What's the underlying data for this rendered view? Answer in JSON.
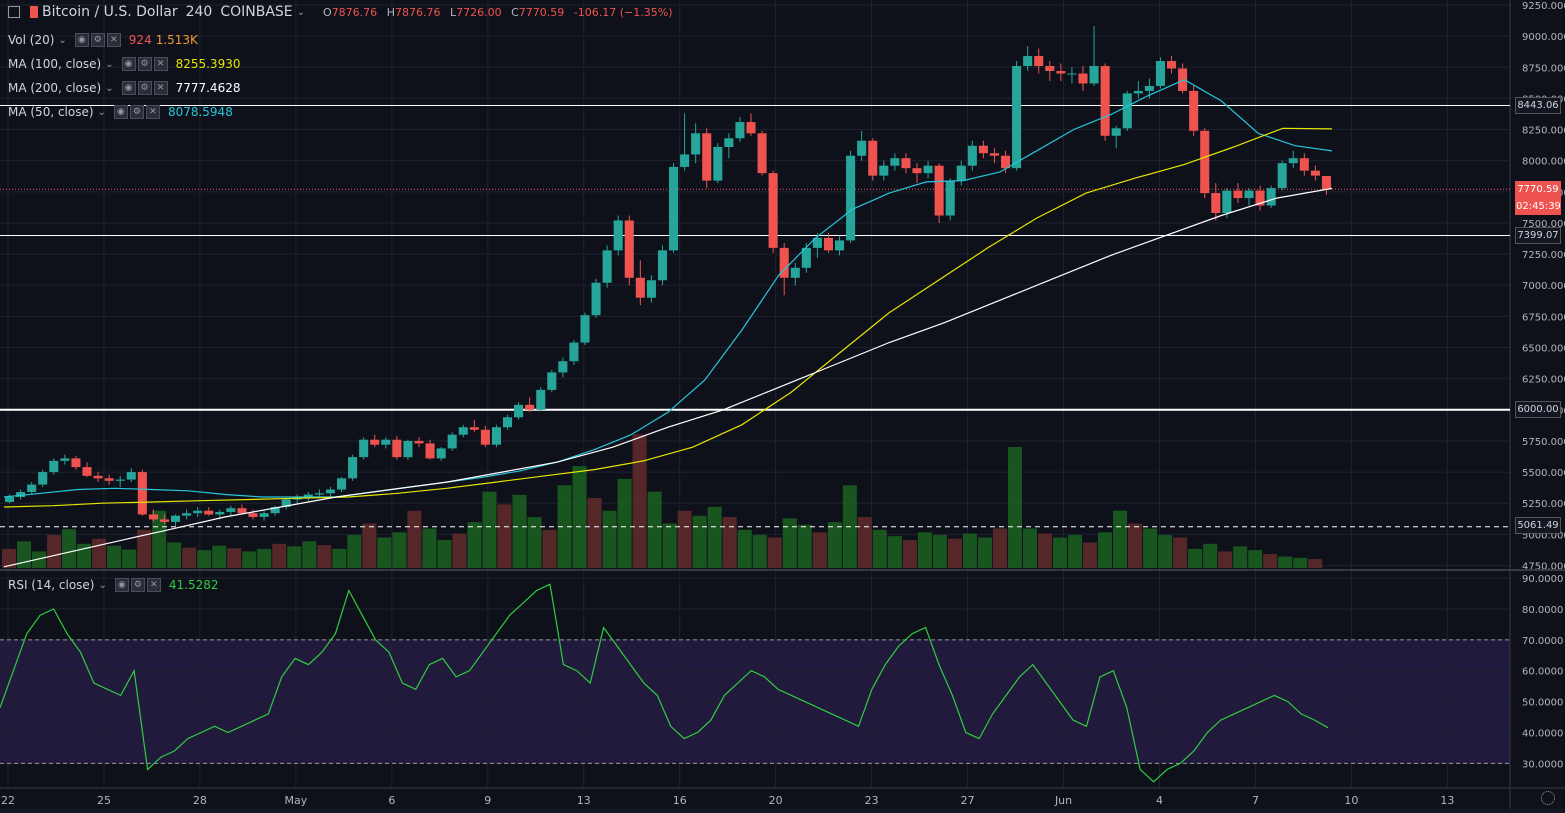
{
  "header": {
    "symbol": "Bitcoin / U.S. Dollar",
    "interval": "240",
    "exchange": "COINBASE",
    "open_label": "O",
    "open": "7876.76",
    "high_label": "H",
    "high": "7876.76",
    "low_label": "L",
    "low": "7726.00",
    "close_label": "C",
    "close": "7770.59",
    "change": "-106.17 (−1.35%)"
  },
  "indicators": {
    "vol": {
      "label": "Vol (20)",
      "value1": "924",
      "value2": "1.513K"
    },
    "ma100": {
      "label": "MA (100, close)",
      "value": "8255.3930",
      "color": "#e6e600"
    },
    "ma200": {
      "label": "MA (200, close)",
      "value": "7777.4628",
      "color": "#ffffff"
    },
    "ma50": {
      "label": "MA (50, close)",
      "value": "8078.5948",
      "color": "#26c6da"
    },
    "rsi": {
      "label": "RSI (14, close)",
      "value": "41.5282",
      "color": "#2ecc40"
    }
  },
  "colors": {
    "up": "#26a69a",
    "down": "#ef5350",
    "rsi_band": "#221a3d",
    "background": "#0f111a"
  },
  "price_axis": {
    "ticks": [
      "9250.000",
      "9000.000",
      "8750.000",
      "8500.000",
      "8250.000",
      "8000.000",
      "7750.000",
      "7500.000",
      "7250.000",
      "7000.000",
      "6750.000",
      "6500.000",
      "6250.000",
      "6000.000",
      "5750.000",
      "5500.000",
      "5250.000",
      "5000.000",
      "4750.000"
    ],
    "tick_values": [
      9250,
      9000,
      8750,
      8500,
      8250,
      8000,
      7750,
      7500,
      7250,
      7000,
      6750,
      6500,
      6250,
      6000,
      5750,
      5500,
      5250,
      5000,
      4750
    ],
    "range": [
      4730,
      9290
    ]
  },
  "price_labels": {
    "level_8443": "8443.06",
    "last_price": "7770.59",
    "countdown": "02:45:39",
    "level_7399": "7399.07",
    "level_6000": "6000.00",
    "level_5061": "5061.49"
  },
  "rsi_axis": {
    "ticks": [
      "90.0000",
      "80.0000",
      "70.0000",
      "60.0000",
      "50.0000",
      "40.0000",
      "30.0000"
    ],
    "tick_values": [
      90,
      80,
      70,
      60,
      50,
      40,
      30
    ],
    "range": [
      22,
      92
    ],
    "band": [
      30,
      70
    ]
  },
  "time_axis": {
    "labels": [
      "22",
      "25",
      "28",
      "May",
      "6",
      "9",
      "13",
      "16",
      "20",
      "23",
      "27",
      "Jun",
      "4",
      "7",
      "10",
      "13"
    ]
  },
  "chart_data": {
    "type": "candlestick",
    "title": "Bitcoin / U.S. Dollar 240 COINBASE",
    "interval": "240",
    "x_categories": [
      "22",
      "25",
      "28",
      "May",
      "6",
      "9",
      "13",
      "16",
      "20",
      "23",
      "27",
      "Jun",
      "4",
      "7",
      "10",
      "13"
    ],
    "ylim": [
      4730,
      9290
    ],
    "candles_ohlc": [
      [
        5260,
        5320,
        5250,
        5300
      ],
      [
        5300,
        5360,
        5280,
        5340
      ],
      [
        5340,
        5420,
        5320,
        5400
      ],
      [
        5400,
        5520,
        5380,
        5500
      ],
      [
        5500,
        5610,
        5480,
        5590
      ],
      [
        5590,
        5640,
        5560,
        5610
      ],
      [
        5610,
        5630,
        5520,
        5540
      ],
      [
        5540,
        5580,
        5460,
        5470
      ],
      [
        5470,
        5500,
        5420,
        5450
      ],
      [
        5450,
        5480,
        5400,
        5430
      ],
      [
        5430,
        5470,
        5380,
        5440
      ],
      [
        5440,
        5530,
        5420,
        5500
      ],
      [
        5500,
        5520,
        5150,
        5160
      ],
      [
        5160,
        5200,
        5100,
        5120
      ],
      [
        5120,
        5160,
        5080,
        5100
      ],
      [
        5100,
        5160,
        5070,
        5150
      ],
      [
        5150,
        5200,
        5120,
        5170
      ],
      [
        5170,
        5220,
        5140,
        5190
      ],
      [
        5190,
        5220,
        5150,
        5160
      ],
      [
        5160,
        5200,
        5120,
        5180
      ],
      [
        5180,
        5230,
        5150,
        5210
      ],
      [
        5210,
        5240,
        5160,
        5170
      ],
      [
        5170,
        5200,
        5120,
        5140
      ],
      [
        5140,
        5190,
        5110,
        5170
      ],
      [
        5170,
        5230,
        5150,
        5220
      ],
      [
        5220,
        5290,
        5200,
        5280
      ],
      [
        5280,
        5320,
        5250,
        5300
      ],
      [
        5300,
        5340,
        5270,
        5320
      ],
      [
        5320,
        5360,
        5290,
        5330
      ],
      [
        5330,
        5380,
        5300,
        5360
      ],
      [
        5360,
        5460,
        5340,
        5450
      ],
      [
        5450,
        5640,
        5430,
        5620
      ],
      [
        5620,
        5780,
        5600,
        5760
      ],
      [
        5760,
        5800,
        5700,
        5720
      ],
      [
        5720,
        5780,
        5690,
        5760
      ],
      [
        5760,
        5790,
        5600,
        5620
      ],
      [
        5620,
        5760,
        5600,
        5750
      ],
      [
        5750,
        5780,
        5700,
        5730
      ],
      [
        5730,
        5760,
        5600,
        5610
      ],
      [
        5610,
        5700,
        5590,
        5690
      ],
      [
        5690,
        5820,
        5670,
        5800
      ],
      [
        5800,
        5880,
        5780,
        5860
      ],
      [
        5860,
        5920,
        5820,
        5840
      ],
      [
        5840,
        5870,
        5700,
        5720
      ],
      [
        5720,
        5880,
        5700,
        5860
      ],
      [
        5860,
        5960,
        5840,
        5940
      ],
      [
        5940,
        6060,
        5920,
        6040
      ],
      [
        6040,
        6100,
        5980,
        6000
      ],
      [
        6000,
        6180,
        5990,
        6160
      ],
      [
        6160,
        6320,
        6140,
        6300
      ],
      [
        6300,
        6420,
        6260,
        6390
      ],
      [
        6390,
        6560,
        6360,
        6540
      ],
      [
        6540,
        6780,
        6520,
        6760
      ],
      [
        6760,
        7050,
        6740,
        7020
      ],
      [
        7020,
        7320,
        6980,
        7280
      ],
      [
        7280,
        7560,
        7240,
        7520
      ],
      [
        7520,
        7560,
        7000,
        7060
      ],
      [
        7060,
        7200,
        6840,
        6900
      ],
      [
        6900,
        7080,
        6860,
        7040
      ],
      [
        7040,
        7320,
        7000,
        7280
      ],
      [
        7280,
        7980,
        7260,
        7950
      ],
      [
        7950,
        8380,
        7920,
        8050
      ],
      [
        8050,
        8300,
        7980,
        8220
      ],
      [
        8220,
        8260,
        7780,
        7840
      ],
      [
        7840,
        8140,
        7820,
        8110
      ],
      [
        8110,
        8220,
        8020,
        8180
      ],
      [
        8180,
        8350,
        8150,
        8310
      ],
      [
        8310,
        8380,
        8200,
        8220
      ],
      [
        8220,
        8240,
        7880,
        7900
      ],
      [
        7900,
        7920,
        7260,
        7300
      ],
      [
        7300,
        7340,
        6920,
        7060
      ],
      [
        7060,
        7180,
        7000,
        7140
      ],
      [
        7140,
        7340,
        7100,
        7300
      ],
      [
        7300,
        7420,
        7220,
        7380
      ],
      [
        7380,
        7420,
        7260,
        7280
      ],
      [
        7280,
        7400,
        7240,
        7360
      ],
      [
        7360,
        8080,
        7340,
        8040
      ],
      [
        8040,
        8240,
        8000,
        8160
      ],
      [
        8160,
        8180,
        7840,
        7880
      ],
      [
        7880,
        8000,
        7840,
        7960
      ],
      [
        7960,
        8060,
        7920,
        8020
      ],
      [
        8020,
        8060,
        7900,
        7940
      ],
      [
        7940,
        7980,
        7820,
        7900
      ],
      [
        7900,
        8000,
        7860,
        7960
      ],
      [
        7960,
        7980,
        7500,
        7560
      ],
      [
        7560,
        7860,
        7520,
        7840
      ],
      [
        7840,
        8000,
        7800,
        7960
      ],
      [
        7960,
        8160,
        7920,
        8120
      ],
      [
        8120,
        8160,
        8020,
        8060
      ],
      [
        8060,
        8100,
        7980,
        8040
      ],
      [
        8040,
        8080,
        7900,
        7940
      ],
      [
        7940,
        8800,
        7920,
        8760
      ],
      [
        8760,
        8920,
        8720,
        8840
      ],
      [
        8840,
        8900,
        8700,
        8760
      ],
      [
        8760,
        8800,
        8640,
        8720
      ],
      [
        8720,
        8780,
        8640,
        8700
      ],
      [
        8700,
        8750,
        8620,
        8700
      ],
      [
        8700,
        8760,
        8560,
        8620
      ],
      [
        8620,
        9080,
        8600,
        8760
      ],
      [
        8760,
        8780,
        8160,
        8200
      ],
      [
        8200,
        8280,
        8100,
        8260
      ],
      [
        8260,
        8560,
        8240,
        8540
      ],
      [
        8540,
        8640,
        8500,
        8560
      ],
      [
        8560,
        8660,
        8500,
        8600
      ],
      [
        8600,
        8830,
        8580,
        8800
      ],
      [
        8800,
        8840,
        8700,
        8740
      ],
      [
        8740,
        8780,
        8540,
        8560
      ],
      [
        8560,
        8600,
        8200,
        8240
      ],
      [
        8240,
        8260,
        7700,
        7740
      ],
      [
        7740,
        7820,
        7520,
        7580
      ],
      [
        7580,
        7780,
        7540,
        7760
      ],
      [
        7760,
        7820,
        7660,
        7700
      ],
      [
        7700,
        7780,
        7640,
        7760
      ],
      [
        7760,
        7800,
        7600,
        7640
      ],
      [
        7640,
        7800,
        7620,
        7780
      ],
      [
        7780,
        8000,
        7760,
        7980
      ],
      [
        7980,
        8080,
        7940,
        8020
      ],
      [
        8020,
        8060,
        7880,
        7920
      ],
      [
        7920,
        7960,
        7840,
        7880
      ],
      [
        7876.76,
        7876.76,
        7726,
        7770.59
      ]
    ],
    "moving_averages": {
      "MA (50, close)": [
        5300,
        5330,
        5360,
        5370,
        5360,
        5350,
        5320,
        5300,
        5300,
        5300,
        5340,
        5380,
        5420,
        5460,
        5510,
        5580,
        5680,
        5800,
        5980,
        6240,
        6640,
        7080,
        7380,
        7610,
        7740,
        7830,
        7840,
        7910,
        8080,
        8250,
        8370,
        8520,
        8650,
        8480,
        8220,
        8120,
        8078.5948
      ],
      "MA (100, close)": [
        5220,
        5230,
        5250,
        5260,
        5270,
        5280,
        5290,
        5300,
        5330,
        5370,
        5420,
        5470,
        5520,
        5590,
        5700,
        5880,
        6140,
        6460,
        6780,
        7040,
        7300,
        7540,
        7740,
        7860,
        7970,
        8110,
        8260,
        8255.393
      ],
      "MA (200, close)": [
        4740,
        4840,
        4940,
        5040,
        5140,
        5220,
        5300,
        5360,
        5420,
        5500,
        5580,
        5700,
        5860,
        6000,
        6180,
        6360,
        6540,
        6700,
        6880,
        7060,
        7240,
        7400,
        7560,
        7700,
        7777.4628
      ]
    },
    "rsi_values": [
      48,
      60,
      72,
      78,
      80,
      72,
      66,
      56,
      54,
      52,
      60,
      28,
      32,
      34,
      38,
      40,
      42,
      40,
      42,
      44,
      46,
      58,
      64,
      62,
      66,
      72,
      86,
      78,
      70,
      66,
      56,
      54,
      62,
      64,
      58,
      60,
      66,
      72,
      78,
      82,
      86,
      88,
      62,
      60,
      56,
      74,
      68,
      62,
      56,
      52,
      42,
      38,
      40,
      44,
      52,
      56,
      60,
      58,
      54,
      52,
      50,
      48,
      46,
      44,
      42,
      54,
      62,
      68,
      72,
      74,
      62,
      52,
      40,
      38,
      46,
      52,
      58,
      62,
      56,
      50,
      44,
      42,
      58,
      60,
      48,
      28,
      24,
      28,
      30,
      34,
      40,
      44,
      46,
      48,
      50,
      52,
      50,
      46,
      44,
      41.5282
    ],
    "volume_scale_max": 2200,
    "volume_samples": [
      300,
      420,
      260,
      520,
      610,
      380,
      460,
      350,
      290,
      600,
      900,
      400,
      320,
      280,
      350,
      310,
      260,
      300,
      380,
      340,
      420,
      360,
      300,
      520,
      700,
      480,
      560,
      900,
      620,
      440,
      540,
      720,
      1200,
      1000,
      1150,
      800,
      600,
      1300,
      1600,
      1100,
      900,
      1400,
      2100,
      1200,
      700,
      900,
      820,
      960,
      800,
      600,
      520,
      480,
      780,
      680,
      560,
      720,
      1300,
      800,
      600,
      500,
      440,
      560,
      520,
      460,
      540,
      480,
      620,
      1900,
      620,
      540,
      480,
      520,
      400,
      560,
      900,
      700,
      620,
      520,
      480,
      300,
      380,
      260,
      340,
      280,
      220,
      180,
      160,
      140
    ]
  }
}
